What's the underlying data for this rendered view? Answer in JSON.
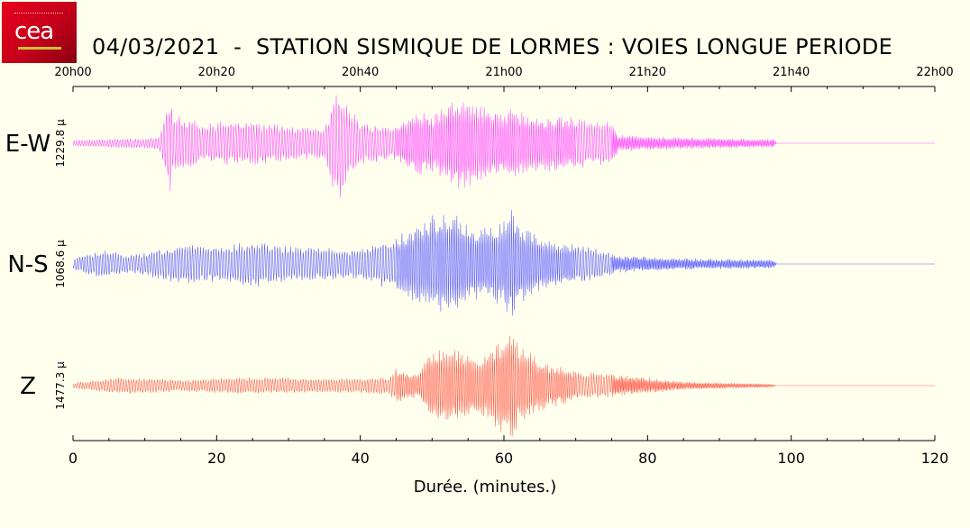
{
  "header": {
    "title": "04/03/2021  -  STATION SISMIQUE DE LORMES : VOIES LONGUE PERIODE",
    "logo_text": "cea"
  },
  "chart_data": {
    "type": "line",
    "title": "04/03/2021  -  STATION SISMIQUE DE LORMES : VOIES LONGUE PERIODE",
    "xlabel": "Durée.  (minutes.)",
    "xlim": [
      0,
      120
    ],
    "x_ticks": [
      0,
      20,
      40,
      60,
      80,
      100,
      120
    ],
    "x_tick_labels": [
      "0",
      "20",
      "40",
      "60",
      "80",
      "100",
      "120"
    ],
    "top_ticks": [
      0,
      20,
      40,
      60,
      80,
      100,
      120
    ],
    "top_tick_labels": [
      "20h00",
      "20h20",
      "20h40",
      "21h00",
      "21h20",
      "21h40",
      "22h00"
    ],
    "series": [
      {
        "name": "E-W",
        "amplitude_label": "1229.8 µ",
        "color": "#ff55ff",
        "envelope": [
          [
            0,
            0.05
          ],
          [
            12,
            0.1
          ],
          [
            13.5,
            0.9
          ],
          [
            14,
            0.5
          ],
          [
            18,
            0.35
          ],
          [
            24,
            0.4
          ],
          [
            30,
            0.3
          ],
          [
            35,
            0.25
          ],
          [
            36.5,
            0.9
          ],
          [
            37,
            1.0
          ],
          [
            37.5,
            0.8
          ],
          [
            40,
            0.35
          ],
          [
            45,
            0.3
          ],
          [
            48,
            0.6
          ],
          [
            50,
            0.5
          ],
          [
            52,
            0.7
          ],
          [
            54,
            0.85
          ],
          [
            56,
            0.7
          ],
          [
            60,
            0.6
          ],
          [
            64,
            0.5
          ],
          [
            70,
            0.45
          ],
          [
            75,
            0.35
          ],
          [
            76,
            0.15
          ],
          [
            85,
            0.1
          ],
          [
            95,
            0.08
          ],
          [
            97.5,
            0.08
          ],
          [
            98,
            0.0
          ],
          [
            120,
            0.0
          ]
        ]
      },
      {
        "name": "N-S",
        "amplitude_label": "1068.6 µ",
        "color": "#6666ff",
        "envelope": [
          [
            0,
            0.1
          ],
          [
            4,
            0.25
          ],
          [
            8,
            0.15
          ],
          [
            15,
            0.35
          ],
          [
            20,
            0.3
          ],
          [
            25,
            0.4
          ],
          [
            30,
            0.3
          ],
          [
            40,
            0.25
          ],
          [
            45,
            0.5
          ],
          [
            50,
            0.85
          ],
          [
            53,
            0.9
          ],
          [
            56,
            0.6
          ],
          [
            60,
            0.75
          ],
          [
            61,
            1.0
          ],
          [
            62,
            0.7
          ],
          [
            66,
            0.4
          ],
          [
            72,
            0.3
          ],
          [
            76,
            0.15
          ],
          [
            85,
            0.1
          ],
          [
            95,
            0.08
          ],
          [
            97.5,
            0.08
          ],
          [
            98,
            0.0
          ],
          [
            120,
            0.0
          ]
        ]
      },
      {
        "name": "Z",
        "amplitude_label": "1477.3 µ",
        "color": "#ff6655",
        "envelope": [
          [
            0,
            0.05
          ],
          [
            7,
            0.15
          ],
          [
            15,
            0.1
          ],
          [
            25,
            0.15
          ],
          [
            35,
            0.12
          ],
          [
            44,
            0.15
          ],
          [
            45,
            0.3
          ],
          [
            48,
            0.2
          ],
          [
            50,
            0.65
          ],
          [
            53,
            0.65
          ],
          [
            56,
            0.5
          ],
          [
            58,
            0.6
          ],
          [
            61,
            1.0
          ],
          [
            62,
            0.7
          ],
          [
            66,
            0.4
          ],
          [
            70,
            0.25
          ],
          [
            79,
            0.15
          ],
          [
            85,
            0.07
          ],
          [
            97,
            0.03
          ],
          [
            98,
            0.0
          ],
          [
            120,
            0.0
          ]
        ]
      }
    ]
  }
}
